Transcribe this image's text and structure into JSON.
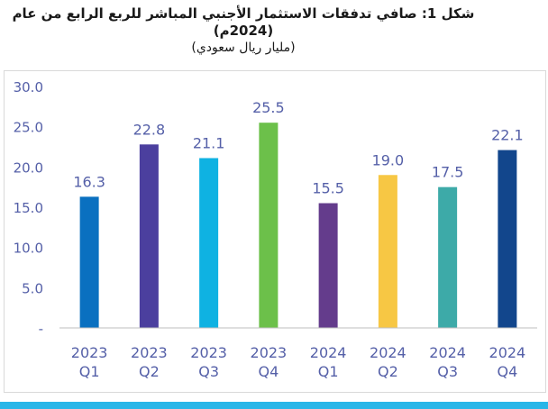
{
  "title": {
    "line1": "شكل 1: صافي تدفقات الاستثمار الأجنبي المباشر للربع الرابع من عام",
    "line2": "(2024م)",
    "unit": "(مليار ريال سعودي)"
  },
  "chart_data": {
    "type": "bar",
    "title": "شكل 1: صافي تدفقات الاستثمار الأجنبي المباشر للربع الرابع من عام (2024م)",
    "ylabel": "(مليار ريال سعودي)",
    "ylim": [
      0,
      30
    ],
    "yticks": [
      "-",
      "5.0",
      "10.0",
      "15.0",
      "20.0",
      "25.0",
      "30.0"
    ],
    "grid": false,
    "categories": [
      {
        "year": "2023",
        "quarter": "Q1"
      },
      {
        "year": "2023",
        "quarter": "Q2"
      },
      {
        "year": "2023",
        "quarter": "Q3"
      },
      {
        "year": "2023",
        "quarter": "Q4"
      },
      {
        "year": "2024",
        "quarter": "Q1"
      },
      {
        "year": "2024",
        "quarter": "Q2"
      },
      {
        "year": "2024",
        "quarter": "Q3"
      },
      {
        "year": "2024",
        "quarter": "Q4"
      }
    ],
    "values": [
      16.3,
      22.8,
      21.1,
      25.5,
      15.5,
      19.0,
      17.5,
      22.1
    ],
    "labels": [
      "16.3",
      "22.8",
      "21.1",
      "25.5",
      "15.5",
      "19.0",
      "17.5",
      "22.1"
    ],
    "colors": [
      "#0a70c0",
      "#4b3f9e",
      "#0fb2e2",
      "#6cc04a",
      "#643c8c",
      "#f7c744",
      "#3daaa8",
      "#12468c"
    ],
    "text_color": "#5560a8",
    "axis_color": "#bfbfbf"
  }
}
